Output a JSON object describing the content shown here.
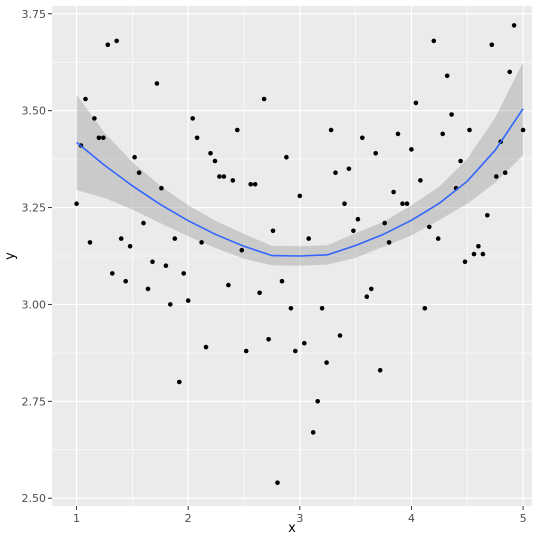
{
  "chart_data": {
    "type": "scatter",
    "xlabel": "x",
    "ylabel": "y",
    "xlim": [
      0.78,
      5.08
    ],
    "ylim": [
      2.48,
      3.77
    ],
    "x_ticks": [
      1,
      2,
      3,
      4,
      5
    ],
    "x_tick_labels": [
      "1",
      "2",
      "3",
      "4",
      "5"
    ],
    "y_ticks": [
      2.5,
      2.75,
      3.0,
      3.25,
      3.5,
      3.75
    ],
    "y_tick_labels": [
      "2.50",
      "2.75",
      "3.00",
      "3.25",
      "3.50",
      "3.75"
    ],
    "grid": true,
    "legend": "none",
    "colors": {
      "panel": "#ebebeb",
      "grid": "#ffffff",
      "points": "#000000",
      "smooth_line": "#3366ff",
      "confidence_band": "#999999"
    },
    "points": [
      [
        1.0,
        3.26
      ],
      [
        1.04,
        3.41
      ],
      [
        1.08,
        3.53
      ],
      [
        1.12,
        3.16
      ],
      [
        1.16,
        3.48
      ],
      [
        1.2,
        3.43
      ],
      [
        1.24,
        3.43
      ],
      [
        1.28,
        3.67
      ],
      [
        1.32,
        3.08
      ],
      [
        1.36,
        3.68
      ],
      [
        1.4,
        3.17
      ],
      [
        1.44,
        3.06
      ],
      [
        1.48,
        3.15
      ],
      [
        1.52,
        3.38
      ],
      [
        1.56,
        3.34
      ],
      [
        1.6,
        3.21
      ],
      [
        1.64,
        3.04
      ],
      [
        1.68,
        3.11
      ],
      [
        1.72,
        3.57
      ],
      [
        1.76,
        3.3
      ],
      [
        1.8,
        3.1
      ],
      [
        1.84,
        3.0
      ],
      [
        1.88,
        3.17
      ],
      [
        1.92,
        2.8
      ],
      [
        1.96,
        3.08
      ],
      [
        2.0,
        3.01
      ],
      [
        2.04,
        3.48
      ],
      [
        2.08,
        3.43
      ],
      [
        2.12,
        3.16
      ],
      [
        2.16,
        2.89
      ],
      [
        2.2,
        3.39
      ],
      [
        2.24,
        3.37
      ],
      [
        2.28,
        3.33
      ],
      [
        2.32,
        3.33
      ],
      [
        2.36,
        3.05
      ],
      [
        2.4,
        3.32
      ],
      [
        2.44,
        3.45
      ],
      [
        2.48,
        3.14
      ],
      [
        2.52,
        2.88
      ],
      [
        2.56,
        3.31
      ],
      [
        2.6,
        3.31
      ],
      [
        2.64,
        3.03
      ],
      [
        2.68,
        3.53
      ],
      [
        2.72,
        2.91
      ],
      [
        2.76,
        3.19
      ],
      [
        2.8,
        2.54
      ],
      [
        2.84,
        3.06
      ],
      [
        2.88,
        3.38
      ],
      [
        2.92,
        2.99
      ],
      [
        2.96,
        2.88
      ],
      [
        3.0,
        3.28
      ],
      [
        3.04,
        2.9
      ],
      [
        3.08,
        3.17
      ],
      [
        3.12,
        2.67
      ],
      [
        3.16,
        2.75
      ],
      [
        3.2,
        2.99
      ],
      [
        3.24,
        2.85
      ],
      [
        3.28,
        3.45
      ],
      [
        3.32,
        3.34
      ],
      [
        3.36,
        2.92
      ],
      [
        3.4,
        3.26
      ],
      [
        3.44,
        3.35
      ],
      [
        3.48,
        3.19
      ],
      [
        3.52,
        3.22
      ],
      [
        3.56,
        3.43
      ],
      [
        3.6,
        3.02
      ],
      [
        3.64,
        3.04
      ],
      [
        3.68,
        3.39
      ],
      [
        3.72,
        2.83
      ],
      [
        3.76,
        3.21
      ],
      [
        3.8,
        3.16
      ],
      [
        3.84,
        3.29
      ],
      [
        3.88,
        3.44
      ],
      [
        3.92,
        3.26
      ],
      [
        3.96,
        3.26
      ],
      [
        4.0,
        3.4
      ],
      [
        4.04,
        3.52
      ],
      [
        4.08,
        3.32
      ],
      [
        4.12,
        2.99
      ],
      [
        4.16,
        3.2
      ],
      [
        4.2,
        3.68
      ],
      [
        4.24,
        3.17
      ],
      [
        4.28,
        3.44
      ],
      [
        4.32,
        3.59
      ],
      [
        4.36,
        3.49
      ],
      [
        4.4,
        3.3
      ],
      [
        4.44,
        3.37
      ],
      [
        4.48,
        3.11
      ],
      [
        4.52,
        3.45
      ],
      [
        4.56,
        3.13
      ],
      [
        4.6,
        3.15
      ],
      [
        4.64,
        3.13
      ],
      [
        4.68,
        3.23
      ],
      [
        4.72,
        3.67
      ],
      [
        4.76,
        3.33
      ],
      [
        4.8,
        3.42
      ],
      [
        4.84,
        3.34
      ],
      [
        4.88,
        3.6
      ],
      [
        4.92,
        3.72
      ],
      [
        5.0,
        3.45
      ]
    ],
    "smooth": {
      "method": "quadratic",
      "x": [
        1.0,
        1.25,
        1.5,
        1.75,
        2.0,
        2.25,
        2.5,
        2.75,
        3.0,
        3.25,
        3.5,
        3.75,
        4.0,
        4.25,
        4.5,
        4.75,
        5.0
      ],
      "y": [
        3.418,
        3.359,
        3.306,
        3.258,
        3.216,
        3.18,
        3.15,
        3.126,
        3.125,
        3.128,
        3.152,
        3.181,
        3.217,
        3.261,
        3.318,
        3.398,
        3.505
      ],
      "lower": [
        3.295,
        3.275,
        3.245,
        3.21,
        3.176,
        3.145,
        3.118,
        3.101,
        3.1,
        3.103,
        3.12,
        3.149,
        3.178,
        3.218,
        3.26,
        3.314,
        3.385
      ],
      "upper": [
        3.541,
        3.443,
        3.367,
        3.306,
        3.256,
        3.215,
        3.182,
        3.151,
        3.15,
        3.153,
        3.184,
        3.213,
        3.256,
        3.304,
        3.376,
        3.482,
        3.625
      ]
    }
  }
}
